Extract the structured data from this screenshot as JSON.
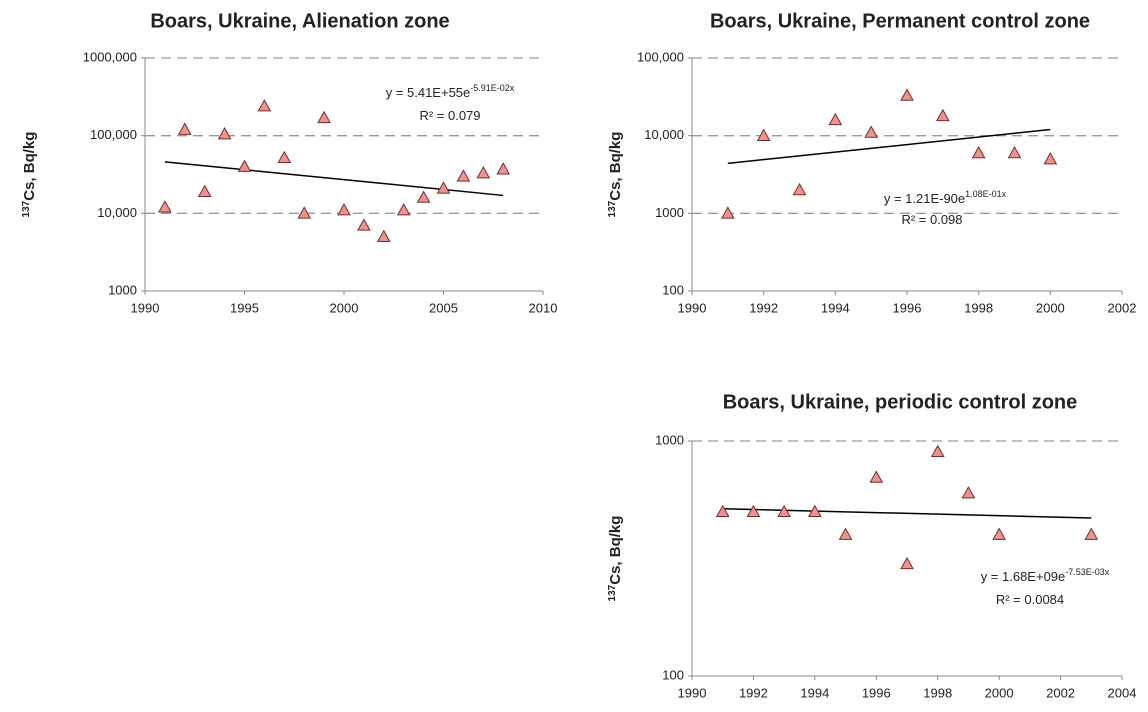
{
  "chart_data": [
    {
      "type": "scatter",
      "title": "Boars, Ukraine, Alienation zone",
      "ylabel": {
        "superscript": "137",
        "text": "Cs, Bq/kg"
      },
      "x": [
        1991,
        1992,
        1993,
        1994,
        1995,
        1996,
        1997,
        1998,
        1999,
        2000,
        2001,
        2002,
        2003,
        2004,
        2005,
        2006,
        2007,
        2008
      ],
      "values": [
        12000,
        120000,
        19000,
        105000,
        40000,
        240000,
        52000,
        10000,
        170000,
        11000,
        7000,
        5000,
        11000,
        16000,
        21000,
        30000,
        33000,
        37000
      ],
      "color": "#e8958f",
      "edge_color": "#7a2a2a",
      "xlim": [
        1990,
        2010
      ],
      "xticks": [
        1990,
        1995,
        2000,
        2005,
        2010
      ],
      "ylim": [
        1000,
        1000000
      ],
      "yscale": "log",
      "yticks": [
        1000,
        {
          "value": 10000,
          "label": "10,000"
        },
        {
          "value": 100000,
          "label": "100,000"
        },
        {
          "value": 1000000,
          "label": "1000,000"
        }
      ],
      "grid": true,
      "trendline": {
        "x": [
          1991,
          2008
        ],
        "values": [
          46000,
          17000
        ],
        "color": "#000000"
      },
      "equation": {
        "base": "y = 5.41E+55e",
        "exponent": "-5.91E-02x"
      },
      "r_squared": "R² = 0.079"
    },
    {
      "type": "scatter",
      "title": "Boars, Ukraine, Permanent control zone",
      "ylabel": {
        "superscript": "137",
        "text": "Cs, Bq/kg"
      },
      "x": [
        1991,
        1992,
        1993,
        1994,
        1995,
        1996,
        1997,
        1998,
        1999,
        2000
      ],
      "values": [
        1000,
        10000,
        2000,
        16000,
        11000,
        33000,
        18000,
        6000,
        6000,
        5000
      ],
      "color": "#e8958f",
      "edge_color": "#7a2a2a",
      "xlim": [
        1990,
        2002
      ],
      "xticks": [
        1990,
        1992,
        1994,
        1996,
        1998,
        2000,
        2002
      ],
      "ylim": [
        100,
        100000
      ],
      "yscale": "log",
      "yticks": [
        100,
        1000,
        {
          "value": 10000,
          "label": "10,000"
        },
        {
          "value": 100000,
          "label": "100,000"
        }
      ],
      "grid": true,
      "trendline": {
        "x": [
          1991,
          2000
        ],
        "values": [
          4400,
          12000
        ],
        "color": "#000000"
      },
      "equation": {
        "base": "y = 1.21E-90e",
        "exponent": "1.08E-01x"
      },
      "r_squared": "R² = 0.098"
    },
    {
      "type": "scatter",
      "title": "Boars, Ukraine, periodic control zone",
      "ylabel": {
        "superscript": "137",
        "text": "Cs, Bq/kg"
      },
      "x": [
        1991,
        1992,
        1993,
        1994,
        1995,
        1996,
        1997,
        1998,
        1999,
        2000,
        2003
      ],
      "values": [
        500,
        500,
        500,
        500,
        400,
        700,
        300,
        900,
        600,
        400,
        400
      ],
      "color": "#e8958f",
      "edge_color": "#7a2a2a",
      "xlim": [
        1990,
        2004
      ],
      "xticks": [
        1990,
        1992,
        1994,
        1996,
        1998,
        2000,
        2002,
        2004
      ],
      "ylim": [
        100,
        1000
      ],
      "yscale": "log",
      "yticks": [
        100,
        1000
      ],
      "grid": true,
      "trendline": {
        "x": [
          1991,
          2003
        ],
        "values": [
          515,
          470
        ],
        "color": "#000000"
      },
      "equation": {
        "base": "y = 1.68E+09e",
        "exponent": "-7.53E-03x"
      },
      "r_squared": "R² = 0.0084"
    }
  ]
}
